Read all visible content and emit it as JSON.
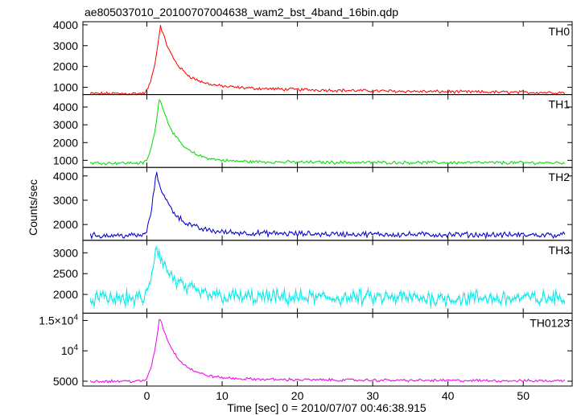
{
  "chart_data": {
    "type": "line",
    "title": "ae805037010_20100707004638_wam2_bst_4band_16bin.qdp",
    "xlabel": "Time [sec] 0 = 2010/07/07 00:46:38.915",
    "ylabel": "Counts/sec",
    "xlim": [
      -8.5,
      56.5
    ],
    "x_ticks": [
      0,
      10,
      20,
      30,
      40,
      50
    ],
    "x_tick_labels": [
      "0",
      "10",
      "20",
      "30",
      "40",
      "50"
    ],
    "curve_model": {
      "x_start": -7.5,
      "x_end": 55.5,
      "n_points": 380
    },
    "panels": [
      {
        "name": "TH0",
        "color": "#ff0000",
        "ylim": [
          650,
          4150
        ],
        "y_ticks": [
          1000,
          2000,
          3000,
          4000
        ],
        "y_tick_labels": [
          "1000",
          "2000",
          "3000",
          "4000"
        ],
        "baseline": 700,
        "peak": 4000,
        "peak_time": 1.8,
        "tail_level": 1100,
        "noise": 60
      },
      {
        "name": "TH1",
        "color": "#00dd00",
        "ylim": [
          600,
          4700
        ],
        "y_ticks": [
          1000,
          2000,
          3000,
          4000
        ],
        "y_tick_labels": [
          "1000",
          "2000",
          "3000",
          "4000"
        ],
        "baseline": 850,
        "peak": 4600,
        "peak_time": 1.7,
        "tail_level": 950,
        "noise": 70
      },
      {
        "name": "TH2",
        "color": "#0000cc",
        "ylim": [
          1350,
          4350
        ],
        "y_ticks": [
          2000,
          3000,
          4000
        ],
        "y_tick_labels": [
          "2000",
          "3000",
          "4000"
        ],
        "baseline": 1550,
        "peak": 4150,
        "peak_time": 1.2,
        "tail_level": 1700,
        "noise": 90
      },
      {
        "name": "TH3",
        "color": "#00e8e8",
        "ylim": [
          1550,
          3300
        ],
        "y_ticks": [
          2000,
          2500,
          3000
        ],
        "y_tick_labels": [
          "2000",
          "2500",
          "3000"
        ],
        "baseline": 1900,
        "peak": 3200,
        "peak_time": 1.2,
        "tail_level": 1950,
        "noise": 150
      },
      {
        "name": "TH0123",
        "color": "#ee00ee",
        "ylim": [
          4200,
          16200
        ],
        "y_ticks": [
          5000,
          10000,
          15000
        ],
        "y_tick_labels": [
          "5000",
          "10^4",
          "1.5×10^4"
        ],
        "baseline": 5000,
        "peak": 15700,
        "peak_time": 1.7,
        "tail_level": 5500,
        "noise": 180
      }
    ]
  }
}
